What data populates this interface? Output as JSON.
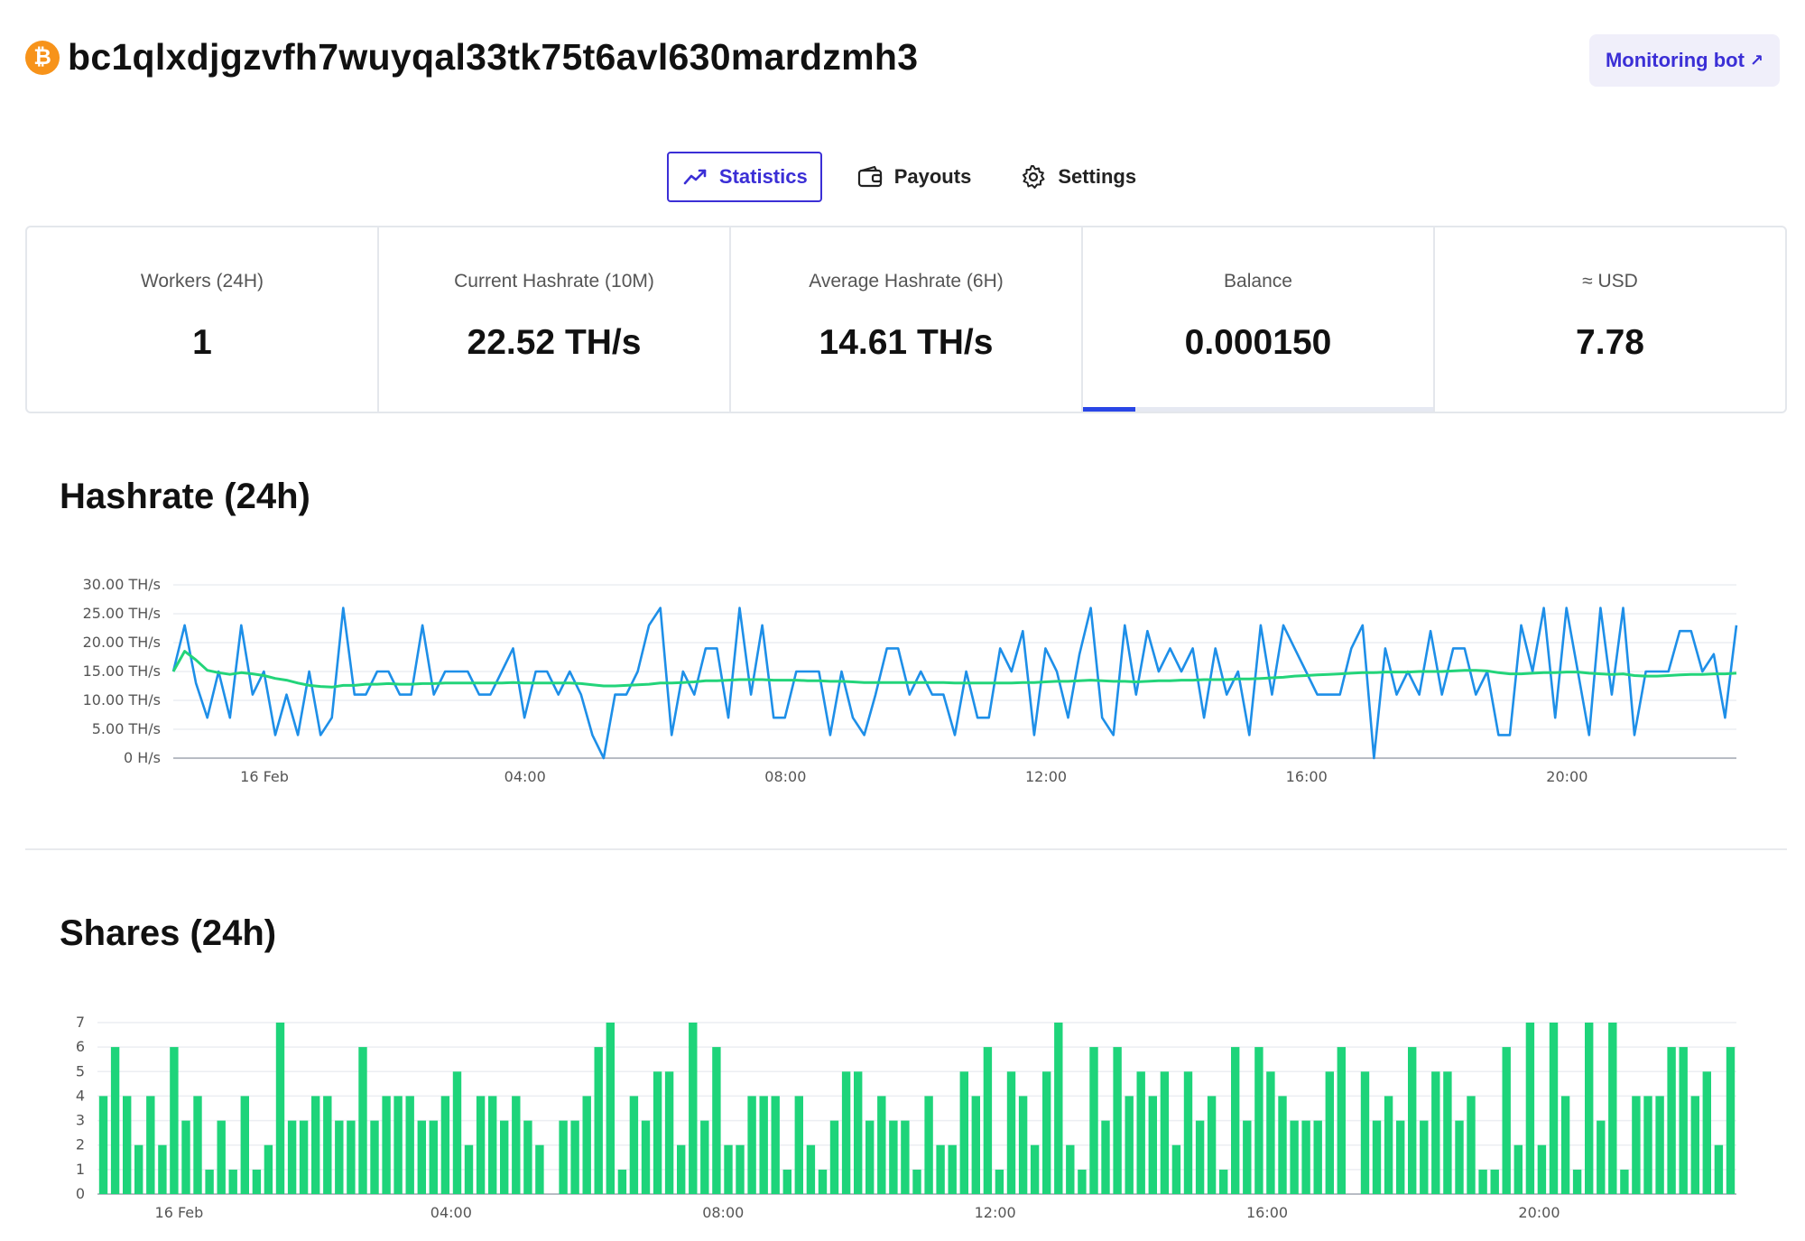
{
  "header": {
    "coin_icon": "bitcoin-icon",
    "coin_glyph": "₿",
    "address": "bc1qlxdjgzvfh7wuyqal33tk75t6avl630mardzmh3",
    "monitoring_button": "Monitoring bot",
    "monitoring_arrow": "↗"
  },
  "tabs": [
    {
      "label": "Statistics",
      "icon": "trend-icon",
      "active": true
    },
    {
      "label": "Payouts",
      "icon": "wallet-icon",
      "active": false
    },
    {
      "label": "Settings",
      "icon": "gear-icon",
      "active": false
    }
  ],
  "stats": [
    {
      "label": "Workers (24H)",
      "value": "1"
    },
    {
      "label": "Current Hashrate (10M)",
      "value": "22.52 TH/s"
    },
    {
      "label": "Average Hashrate (6H)",
      "value": "14.61 TH/s"
    },
    {
      "label": "Balance",
      "value": "0.000150",
      "progress": 0.15
    },
    {
      "label": "≈ USD",
      "value": "7.78"
    }
  ],
  "colors": {
    "accent": "#3b2fd6",
    "hashrate_line": "#1e8fe8",
    "average_line": "#23d47a",
    "bars": "#1ed47a",
    "bitcoin": "#f7931a"
  },
  "sections": {
    "hashrate_title": "Hashrate (24h)",
    "shares_title": "Shares (24h)"
  },
  "chart_data": [
    {
      "type": "line",
      "title": "Hashrate (24h)",
      "x_unit": "hours since 16 Feb 00:00",
      "x_range": [
        -1.4,
        22.6
      ],
      "ylim": [
        0,
        30
      ],
      "y_ticks": [
        "0 H/s",
        "5.00 TH/s",
        "10.00 TH/s",
        "15.00 TH/s",
        "20.00 TH/s",
        "25.00 TH/s",
        "30.00 TH/s"
      ],
      "x_ticks": [
        {
          "x": 0,
          "label": "16 Feb"
        },
        {
          "x": 4,
          "label": "04:00"
        },
        {
          "x": 8,
          "label": "08:00"
        },
        {
          "x": 12,
          "label": "12:00"
        },
        {
          "x": 16,
          "label": "16:00"
        },
        {
          "x": 20,
          "label": "20:00"
        }
      ],
      "grid": true,
      "series": [
        {
          "values": [
            15,
            23,
            13,
            7,
            15,
            7,
            23,
            11,
            15,
            4,
            11,
            4,
            15,
            4,
            7,
            26,
            11,
            11,
            15,
            15,
            11,
            11,
            23,
            11,
            15,
            15,
            15,
            11,
            11,
            15,
            19,
            7,
            15,
            15,
            11,
            15,
            11,
            4,
            0,
            11,
            11,
            15,
            23,
            26,
            4,
            15,
            11,
            19,
            19,
            7,
            26,
            11,
            23,
            7,
            7,
            15,
            15,
            15,
            4,
            15,
            7,
            4,
            11,
            19,
            19,
            11,
            15,
            11,
            11,
            4,
            15,
            7,
            7,
            19,
            15,
            22,
            4,
            19,
            15,
            7,
            18,
            26,
            7,
            4,
            23,
            11,
            22,
            15,
            19,
            15,
            19,
            7,
            19,
            11,
            15,
            4,
            23,
            11,
            23,
            19,
            15,
            11,
            11,
            11,
            19,
            23,
            0,
            19,
            11,
            15,
            11,
            22,
            11,
            19,
            19,
            11,
            15,
            4,
            4,
            23,
            15,
            26,
            7,
            26,
            15,
            4,
            26,
            11,
            26,
            4,
            15,
            15,
            15,
            22,
            22,
            15,
            18,
            7,
            23
          ]
        },
        {
          "values": [
            15,
            18.5,
            17,
            15.2,
            14.8,
            14.5,
            14.8,
            14.6,
            14.3,
            13.8,
            13.5,
            13,
            12.6,
            12.4,
            12.3,
            12.6,
            12.6,
            12.8,
            12.8,
            12.9,
            12.8,
            12.8,
            12.9,
            12.9,
            13,
            13,
            13,
            13,
            13,
            13,
            13.1,
            13,
            13,
            13,
            13,
            13,
            12.9,
            12.7,
            12.5,
            12.5,
            12.6,
            12.7,
            12.8,
            13,
            13,
            13.1,
            13.2,
            13.4,
            13.4,
            13.5,
            13.6,
            13.6,
            13.6,
            13.5,
            13.5,
            13.5,
            13.4,
            13.4,
            13.3,
            13.3,
            13.2,
            13.1,
            13.1,
            13.1,
            13.1,
            13.1,
            13.1,
            13.1,
            13.1,
            13,
            13,
            13,
            13,
            13,
            13,
            13.1,
            13.1,
            13.2,
            13.3,
            13.3,
            13.4,
            13.5,
            13.4,
            13.3,
            13.3,
            13.2,
            13.3,
            13.4,
            13.4,
            13.5,
            13.5,
            13.6,
            13.6,
            13.6,
            13.7,
            13.7,
            13.8,
            13.9,
            14,
            14.2,
            14.3,
            14.4,
            14.5,
            14.6,
            14.7,
            14.8,
            14.8,
            14.9,
            14.9,
            14.9,
            15,
            15,
            15,
            15.1,
            15.2,
            15.2,
            15.1,
            14.8,
            14.6,
            14.6,
            14.7,
            14.8,
            14.8,
            14.9,
            14.9,
            14.7,
            14.6,
            14.5,
            14.6,
            14.3,
            14.2,
            14.2,
            14.3,
            14.4,
            14.5,
            14.5,
            14.6,
            14.6,
            14.7
          ]
        }
      ]
    },
    {
      "type": "bar",
      "title": "Shares (24h)",
      "x_unit": "hours since 16 Feb 00:00",
      "x_range": [
        -1.2,
        22.9
      ],
      "ylim": [
        0,
        7
      ],
      "y_ticks": [
        "0",
        "1",
        "2",
        "3",
        "4",
        "5",
        "6",
        "7"
      ],
      "x_ticks": [
        {
          "x": 0,
          "label": "16 Feb"
        },
        {
          "x": 4,
          "label": "04:00"
        },
        {
          "x": 8,
          "label": "08:00"
        },
        {
          "x": 12,
          "label": "12:00"
        },
        {
          "x": 16,
          "label": "16:00"
        },
        {
          "x": 20,
          "label": "20:00"
        }
      ],
      "grid": true,
      "values": [
        4,
        6,
        4,
        2,
        4,
        2,
        6,
        3,
        4,
        1,
        3,
        1,
        4,
        1,
        2,
        7,
        3,
        3,
        4,
        4,
        3,
        3,
        6,
        3,
        4,
        4,
        4,
        3,
        3,
        4,
        5,
        2,
        4,
        4,
        3,
        4,
        3,
        2,
        0,
        3,
        3,
        4,
        6,
        7,
        1,
        4,
        3,
        5,
        5,
        2,
        7,
        3,
        6,
        2,
        2,
        4,
        4,
        4,
        1,
        4,
        2,
        1,
        3,
        5,
        5,
        3,
        4,
        3,
        3,
        1,
        4,
        2,
        2,
        5,
        4,
        6,
        1,
        5,
        4,
        2,
        5,
        7,
        2,
        1,
        6,
        3,
        6,
        4,
        5,
        4,
        5,
        2,
        5,
        3,
        4,
        1,
        6,
        3,
        6,
        5,
        4,
        3,
        3,
        3,
        5,
        6,
        0,
        5,
        3,
        4,
        3,
        6,
        3,
        5,
        5,
        3,
        4,
        1,
        1,
        6,
        2,
        7,
        2,
        7,
        4,
        1,
        7,
        3,
        7,
        1,
        4,
        4,
        4,
        6,
        6,
        4,
        5,
        2,
        6
      ]
    }
  ]
}
